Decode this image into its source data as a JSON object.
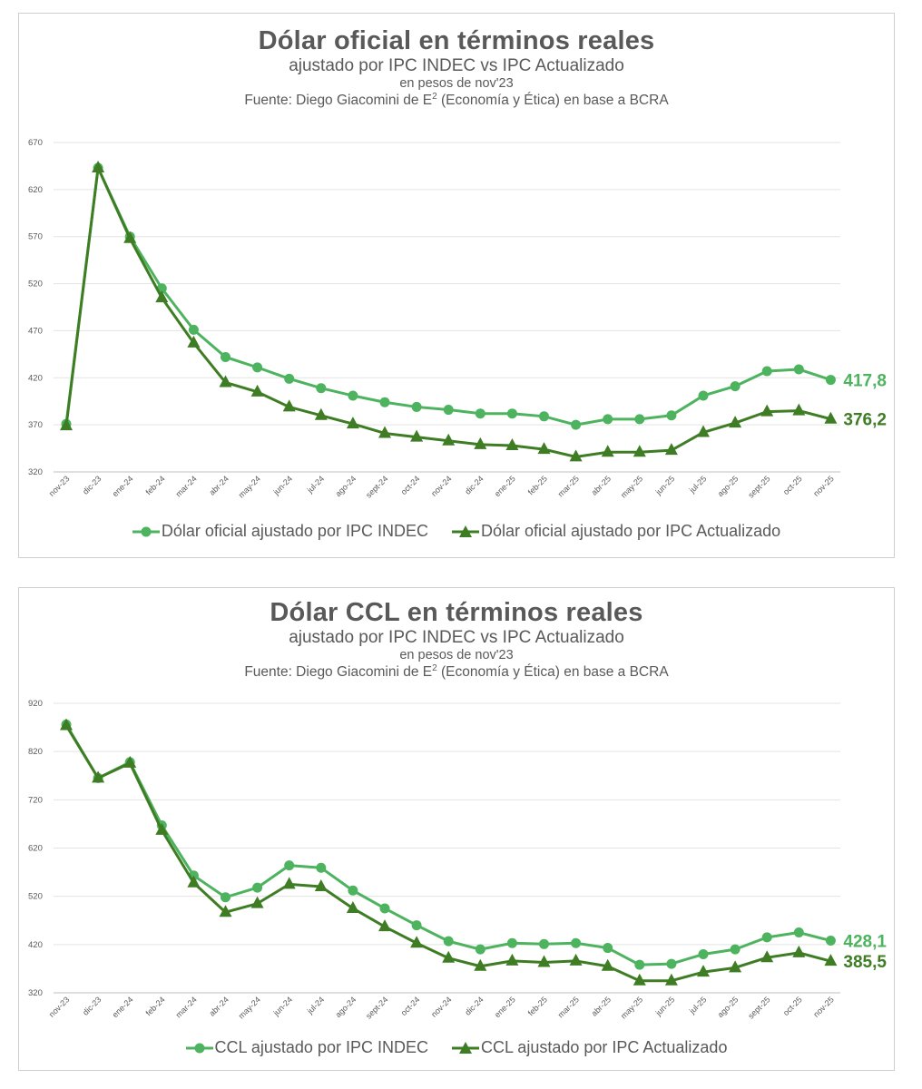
{
  "colors": {
    "indec": "#4db35e",
    "actualizado": "#3e7d24",
    "grid": "#e3e3e3",
    "axis_text": "#595959"
  },
  "chart_data": [
    {
      "type": "line",
      "title": "Dólar oficial en términos reales",
      "subtitle": "ajustado por IPC INDEC vs IPC Actualizado",
      "unit": "en pesos de nov'23",
      "source_prefix": "Fuente: Diego Giacomini de E",
      "source_sup": "2",
      "source_suffix": " (Economía y Ética) en base a BCRA",
      "categories": [
        "nov-23",
        "dic-23",
        "ene-24",
        "feb-24",
        "mar-24",
        "abr-24",
        "may-24",
        "jun-24",
        "jul-24",
        "ago-24",
        "sept-24",
        "oct-24",
        "nov-24",
        "dic-24",
        "ene-25",
        "feb-25",
        "mar-25",
        "abr-25",
        "may-25",
        "jun-25",
        "jul-25",
        "ago-25",
        "sept-25",
        "oct-25",
        "nov-25"
      ],
      "ylim": [
        320,
        670
      ],
      "yticks": [
        320,
        370,
        420,
        470,
        520,
        570,
        620,
        670
      ],
      "grid": true,
      "legend_position": "bottom",
      "series": [
        {
          "name": "Dólar oficial ajustado por IPC INDEC",
          "marker": "circle",
          "color_key": "indec",
          "end_label": "417,8",
          "values": [
            371,
            643,
            570,
            515,
            471,
            442,
            431,
            419,
            409,
            401,
            394,
            389,
            386,
            382,
            382,
            379,
            370,
            376,
            376,
            380,
            401,
            411,
            427,
            429,
            417.8
          ]
        },
        {
          "name": "Dólar oficial ajustado por IPC Actualizado",
          "marker": "triangle",
          "color_key": "actualizado",
          "end_label": "376,2",
          "values": [
            369,
            643,
            568,
            505,
            457,
            415,
            405,
            389,
            380,
            371,
            361,
            357,
            353,
            349,
            348,
            344,
            336,
            341,
            341,
            343,
            362,
            372,
            384,
            385,
            376.2
          ]
        }
      ]
    },
    {
      "type": "line",
      "title": "Dólar CCL en términos reales",
      "subtitle": "ajustado por IPC INDEC vs IPC Actualizado",
      "unit": "en pesos de nov'23",
      "source_prefix": "Fuente: Diego Giacomini de E",
      "source_sup": "2",
      "source_suffix": " (Economía y Ética) en base a BCRA",
      "categories": [
        "nov-23",
        "dic-23",
        "ene-24",
        "feb-24",
        "mar-24",
        "abr-24",
        "may-24",
        "jun-24",
        "jul-24",
        "ago-24",
        "sept-24",
        "oct-24",
        "nov-24",
        "dic-24",
        "ene-25",
        "feb-25",
        "mar-25",
        "abr-25",
        "may-25",
        "jun-25",
        "jul-25",
        "ago-25",
        "sept-25",
        "oct-25",
        "nov-25"
      ],
      "ylim": [
        320,
        920
      ],
      "yticks": [
        320,
        420,
        520,
        620,
        720,
        820,
        920
      ],
      "grid": true,
      "legend_position": "bottom",
      "series": [
        {
          "name": "CCL ajustado por IPC INDEC",
          "marker": "circle",
          "color_key": "indec",
          "end_label": "428,1",
          "values": [
            876,
            765,
            798,
            667,
            563,
            518,
            538,
            584,
            579,
            532,
            495,
            460,
            427,
            410,
            423,
            421,
            423,
            413,
            378,
            380,
            400,
            410,
            435,
            445,
            428.1
          ]
        },
        {
          "name": "CCL ajustado por IPC Actualizado",
          "marker": "triangle",
          "color_key": "actualizado",
          "end_label": "385,5",
          "values": [
            874,
            765,
            796,
            657,
            548,
            487,
            505,
            545,
            540,
            495,
            457,
            423,
            392,
            375,
            386,
            383,
            386,
            375,
            345,
            345,
            363,
            372,
            393,
            403,
            385.5
          ]
        }
      ]
    }
  ]
}
